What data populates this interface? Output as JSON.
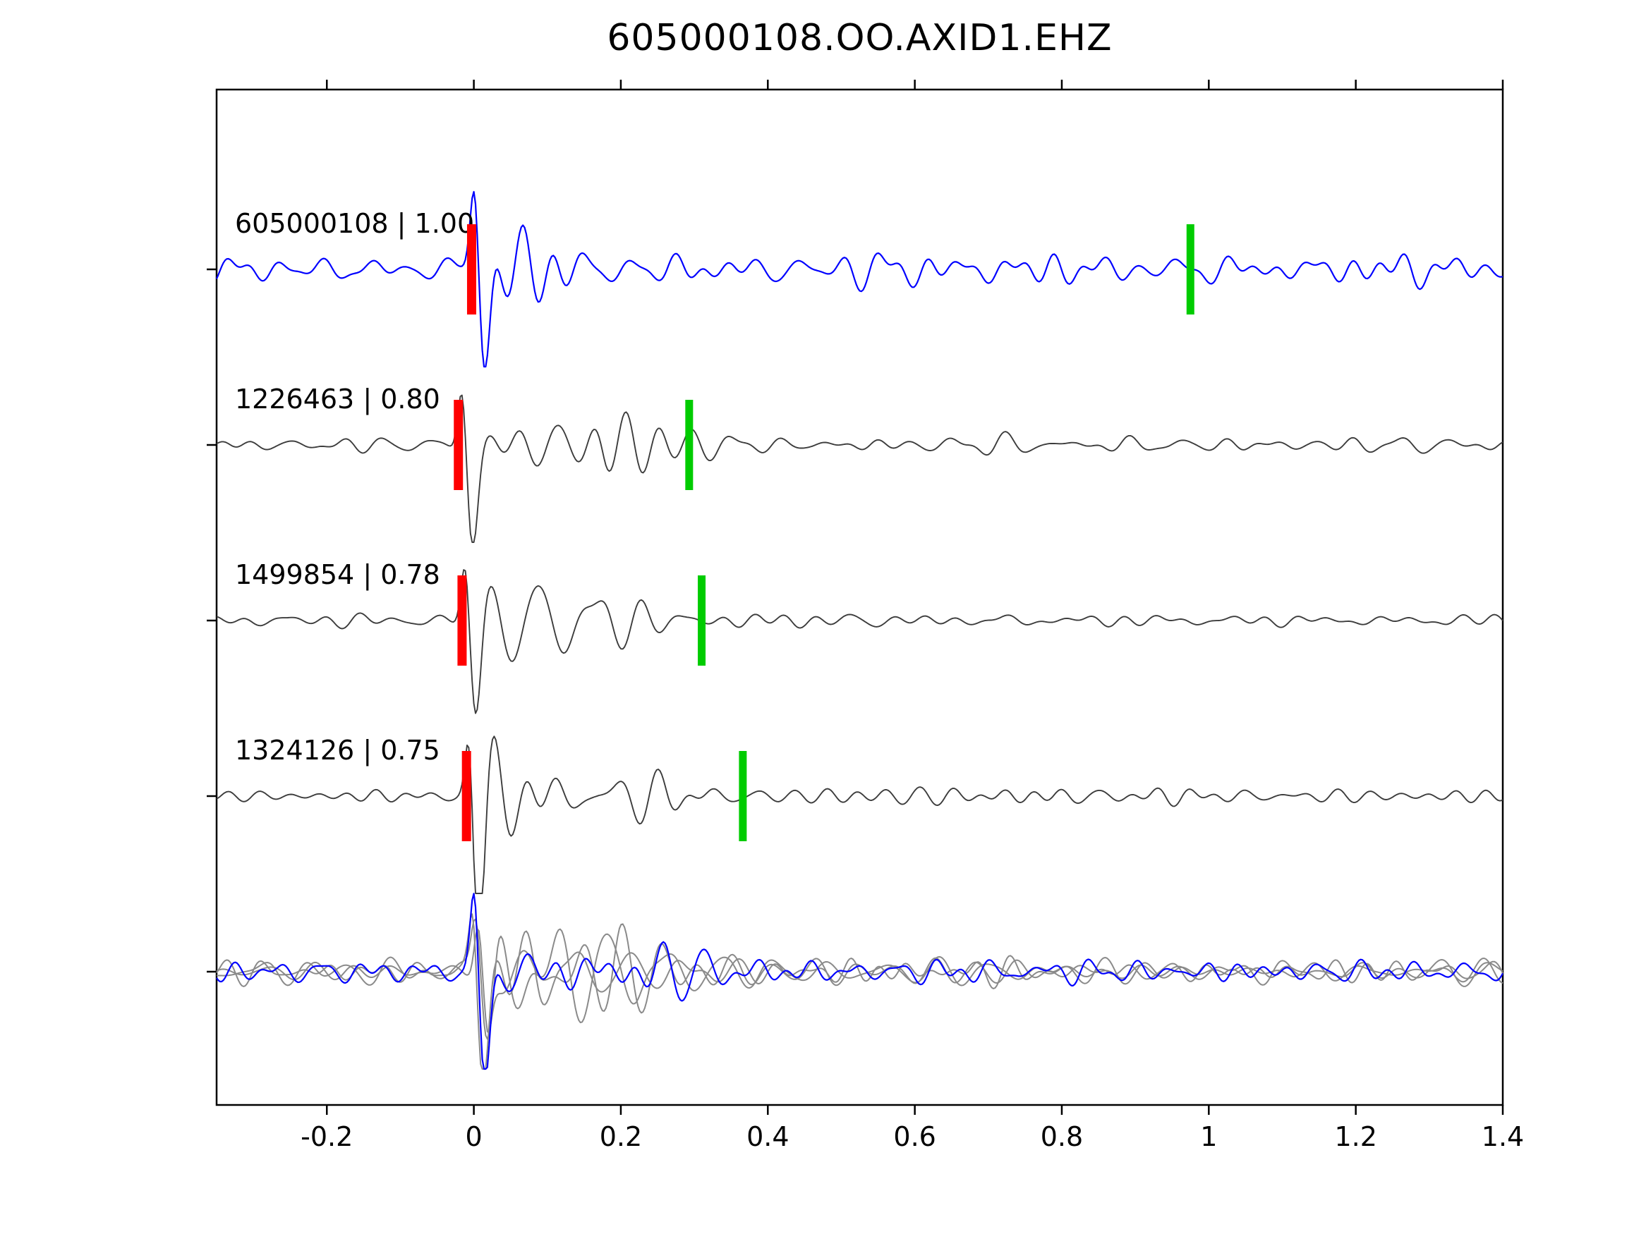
{
  "title": "605000108.OO.AXID1.EHZ",
  "chart_data": {
    "type": "line",
    "title": "605000108.OO.AXID1.EHZ",
    "subtitle": "",
    "xlabel": "",
    "ylabel": "",
    "xlim": [
      -0.35,
      1.4
    ],
    "x_ticks": [
      -0.2,
      0,
      0.2,
      0.4,
      0.6,
      0.8,
      1.0,
      1.2,
      1.4
    ],
    "x_tick_labels": [
      "-0.2",
      "0",
      "0.2",
      "0.4",
      "0.6",
      "0.8",
      "1",
      "1.2",
      "1.4"
    ],
    "grid": false,
    "legend": "none",
    "colors": {
      "template": "#0000ff",
      "detection": "#3c3c3c",
      "overlay_gray": "#8a8a8a",
      "overlay_blue": "#0000ff",
      "pick_red": "#ff0000",
      "pick_green": "#00cc00",
      "axis": "#000000"
    },
    "traces": [
      {
        "row": 0,
        "label": "605000108 | 1.00",
        "event_id": "605000108",
        "correlation": 1.0,
        "color_key": "template",
        "red_pick_x": -0.003,
        "green_pick_x": 0.975
      },
      {
        "row": 1,
        "label": "1226463 | 0.80",
        "event_id": "1226463",
        "correlation": 0.8,
        "color_key": "detection",
        "red_pick_x": -0.021,
        "green_pick_x": 0.293
      },
      {
        "row": 2,
        "label": "1499854 | 0.78",
        "event_id": "1499854",
        "correlation": 0.78,
        "color_key": "detection",
        "red_pick_x": -0.016,
        "green_pick_x": 0.31
      },
      {
        "row": 3,
        "label": "1324126 | 0.75",
        "event_id": "1324126",
        "correlation": 0.75,
        "color_key": "detection",
        "red_pick_x": -0.01,
        "green_pick_x": 0.366
      },
      {
        "row": 4,
        "label": "",
        "overlay": true,
        "overlay_gray_count": 3,
        "has_blue_overlay": true,
        "color_key": "overlay_gray",
        "red_pick_x": null,
        "green_pick_x": null
      }
    ]
  }
}
